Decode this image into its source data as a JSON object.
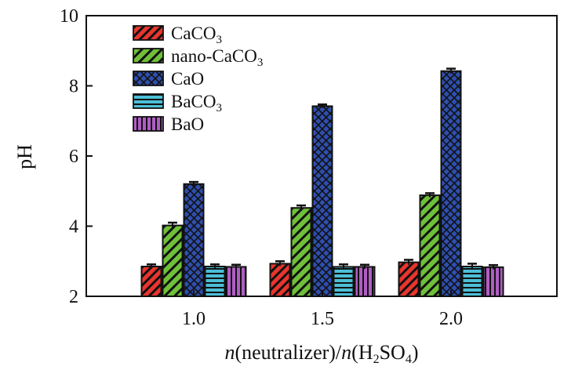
{
  "chart_data": {
    "type": "bar",
    "categories": [
      "1.0",
      "1.5",
      "2.0"
    ],
    "series": [
      {
        "name": "CaCO3",
        "label_main": "CaCO",
        "label_sub": "3",
        "color": "#e8352e",
        "pattern": "diag-left",
        "values": [
          2.85,
          2.93,
          2.97
        ],
        "errors": [
          0.06,
          0.07,
          0.07
        ]
      },
      {
        "name": "nano-CaCO3",
        "label_main": "nano-CaCO",
        "label_sub": "3",
        "color": "#6fbf3a",
        "pattern": "diag-left-wide",
        "values": [
          4.02,
          4.52,
          4.88
        ],
        "errors": [
          0.08,
          0.07,
          0.06
        ]
      },
      {
        "name": "CaO",
        "label_main": "CaO",
        "label_sub": "",
        "color": "#2f4fae",
        "pattern": "crosshatch",
        "values": [
          5.2,
          7.42,
          8.42
        ],
        "errors": [
          0.06,
          0.05,
          0.07
        ]
      },
      {
        "name": "BaCO3",
        "label_main": "BaCO",
        "label_sub": "3",
        "color": "#4bbfd6",
        "pattern": "horizontal",
        "values": [
          2.85,
          2.84,
          2.85
        ],
        "errors": [
          0.06,
          0.07,
          0.08
        ]
      },
      {
        "name": "BaO",
        "label_main": "BaO",
        "label_sub": "",
        "color": "#b05ec4",
        "pattern": "vertical",
        "values": [
          2.84,
          2.84,
          2.83
        ],
        "errors": [
          0.06,
          0.06,
          0.06
        ]
      }
    ],
    "ylim": [
      2,
      10
    ],
    "yticks": [
      "2",
      "4",
      "6",
      "8",
      "10"
    ],
    "ylabel": "pH",
    "xlabel": {
      "n1": "n",
      "part1": "(neutralizer)/",
      "n2": "n",
      "part2": "(H",
      "sub1": "2",
      "part3": "SO",
      "sub2": "4",
      "part4": ")"
    },
    "legend": "top-left",
    "grid": false
  }
}
